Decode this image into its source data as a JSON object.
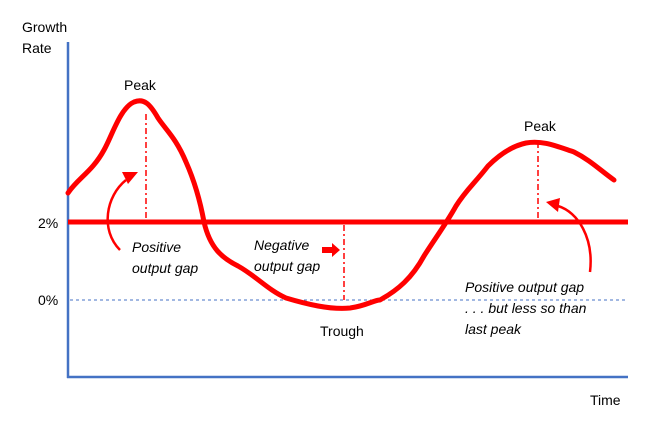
{
  "axes": {
    "y_label_line1": "Growth",
    "y_label_line2": "Rate",
    "x_label": "Time",
    "tick_2pct": "2%",
    "tick_0pct": "0%"
  },
  "annotations": {
    "peak_1": "Peak",
    "peak_2": "Peak",
    "trough": "Trough",
    "positive_gap_1_line1": "Positive",
    "positive_gap_1_line2": "output gap",
    "negative_gap_line1": "Negative",
    "negative_gap_line2": "output gap",
    "positive_gap_2_line1": "Positive output gap",
    "positive_gap_2_line2": ". . . but less so than",
    "positive_gap_2_line3": "last peak"
  },
  "colors": {
    "axis": "#4472c4",
    "curve": "#ff0000",
    "dashed_zero": "#4472c4"
  }
}
